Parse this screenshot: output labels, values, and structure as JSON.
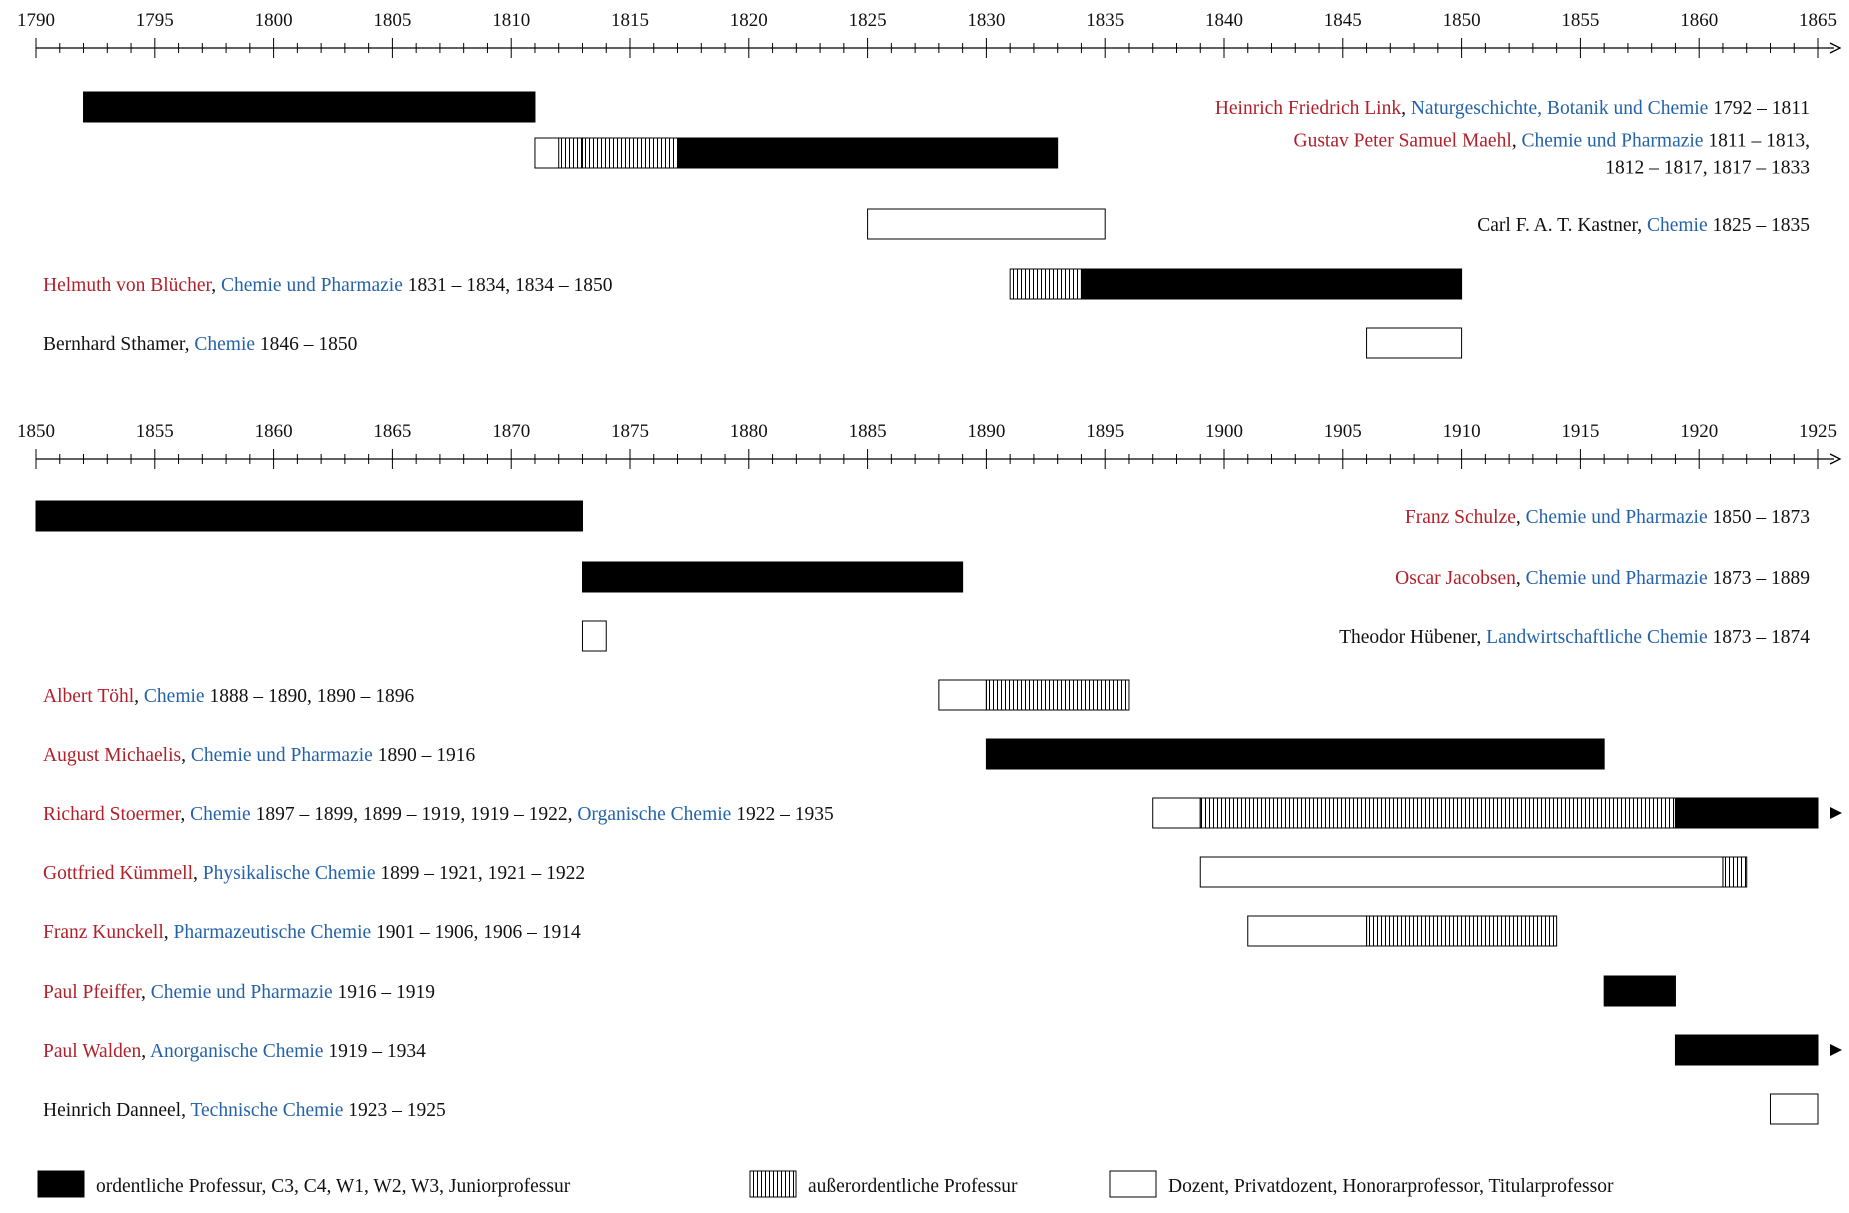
{
  "chart_data": [
    {
      "type": "timeline",
      "xlim": [
        1790,
        1865
      ],
      "ticks": [
        1790,
        1795,
        1800,
        1805,
        1810,
        1815,
        1820,
        1825,
        1830,
        1835,
        1840,
        1845,
        1850,
        1855,
        1860,
        1865
      ],
      "rows": [
        {
          "label_side": "right",
          "name": "Heinrich Friedrich Link",
          "name_color": "red",
          "lines": [
            [
              {
                "text": "Heinrich Friedrich Link",
                "color": "red"
              },
              {
                "text": ", ",
                "color": "black"
              },
              {
                "text": "Naturgeschichte, Botanik und Chemie",
                "color": "blue"
              },
              {
                "text": " 1792 – 1811",
                "color": "black"
              }
            ]
          ],
          "segments": [
            {
              "start": 1792,
              "end": 1811,
              "kind": "ordentlich"
            }
          ]
        },
        {
          "label_side": "right",
          "name": "Gustav Peter Samuel Maehl",
          "name_color": "red",
          "lines": [
            [
              {
                "text": "Gustav Peter Samuel Maehl",
                "color": "red"
              },
              {
                "text": ", ",
                "color": "black"
              },
              {
                "text": "Chemie und Pharmazie",
                "color": "blue"
              },
              {
                "text": " 1811 – 1813,",
                "color": "black"
              }
            ],
            [
              {
                "text": "1812 – 1817, 1817 – 1833",
                "color": "black"
              }
            ]
          ],
          "segments": [
            {
              "start": 1811,
              "end": 1813,
              "kind": "dozent"
            },
            {
              "start": 1812,
              "end": 1817,
              "kind": "ausserordentlich"
            },
            {
              "start": 1817,
              "end": 1833,
              "kind": "ordentlich"
            }
          ]
        },
        {
          "label_side": "right",
          "name": "Carl F. A. T. Kastner",
          "name_color": "black",
          "lines": [
            [
              {
                "text": "Carl F. A. T. Kastner",
                "color": "black"
              },
              {
                "text": ", ",
                "color": "black"
              },
              {
                "text": "Chemie",
                "color": "blue"
              },
              {
                "text": " 1825 – 1835",
                "color": "black"
              }
            ]
          ],
          "segments": [
            {
              "start": 1825,
              "end": 1835,
              "kind": "dozent"
            }
          ]
        },
        {
          "label_side": "left",
          "name": "Helmuth von Blücher",
          "name_color": "red",
          "lines": [
            [
              {
                "text": "Helmuth von Blücher",
                "color": "red"
              },
              {
                "text": ", ",
                "color": "black"
              },
              {
                "text": "Chemie und Pharmazie",
                "color": "blue"
              },
              {
                "text": " 1831 – 1834, 1834 – 1850",
                "color": "black"
              }
            ]
          ],
          "segments": [
            {
              "start": 1831,
              "end": 1834,
              "kind": "ausserordentlich"
            },
            {
              "start": 1834,
              "end": 1850,
              "kind": "ordentlich"
            }
          ]
        },
        {
          "label_side": "left",
          "name": "Bernhard Sthamer",
          "name_color": "black",
          "lines": [
            [
              {
                "text": "Bernhard Sthamer",
                "color": "black"
              },
              {
                "text": ", ",
                "color": "black"
              },
              {
                "text": "Chemie",
                "color": "blue"
              },
              {
                "text": " 1846 – 1850",
                "color": "black"
              }
            ]
          ],
          "segments": [
            {
              "start": 1846,
              "end": 1850,
              "kind": "dozent"
            }
          ]
        }
      ]
    },
    {
      "type": "timeline",
      "xlim": [
        1850,
        1925
      ],
      "ticks": [
        1850,
        1855,
        1860,
        1865,
        1870,
        1875,
        1880,
        1885,
        1890,
        1895,
        1900,
        1905,
        1910,
        1915,
        1920,
        1925
      ],
      "rows": [
        {
          "label_side": "right",
          "name": "Franz Schulze",
          "name_color": "red",
          "lines": [
            [
              {
                "text": "Franz Schulze",
                "color": "red"
              },
              {
                "text": ", ",
                "color": "black"
              },
              {
                "text": "Chemie und Pharmazie",
                "color": "blue"
              },
              {
                "text": " 1850 – 1873",
                "color": "black"
              }
            ]
          ],
          "segments": [
            {
              "start": 1850,
              "end": 1873,
              "kind": "ordentlich"
            }
          ]
        },
        {
          "label_side": "right",
          "name": "Oscar Jacobsen",
          "name_color": "red",
          "lines": [
            [
              {
                "text": "Oscar Jacobsen",
                "color": "red"
              },
              {
                "text": ", ",
                "color": "black"
              },
              {
                "text": "Chemie und Pharmazie",
                "color": "blue"
              },
              {
                "text": " 1873 – 1889",
                "color": "black"
              }
            ]
          ],
          "segments": [
            {
              "start": 1873,
              "end": 1889,
              "kind": "ordentlich"
            }
          ]
        },
        {
          "label_side": "right",
          "name": "Theodor Hübener",
          "name_color": "black",
          "lines": [
            [
              {
                "text": "Theodor Hübener",
                "color": "black"
              },
              {
                "text": ", ",
                "color": "black"
              },
              {
                "text": "Landwirtschaftliche Chemie",
                "color": "blue"
              },
              {
                "text": " 1873 – 1874",
                "color": "black"
              }
            ]
          ],
          "segments": [
            {
              "start": 1873,
              "end": 1874,
              "kind": "dozent"
            }
          ]
        },
        {
          "label_side": "left",
          "name": "Albert Töhl",
          "name_color": "red",
          "lines": [
            [
              {
                "text": "Albert Töhl",
                "color": "red"
              },
              {
                "text": ", ",
                "color": "black"
              },
              {
                "text": "Chemie",
                "color": "blue"
              },
              {
                "text": " 1888 – 1890, 1890 – 1896",
                "color": "black"
              }
            ]
          ],
          "segments": [
            {
              "start": 1888,
              "end": 1890,
              "kind": "dozent"
            },
            {
              "start": 1890,
              "end": 1896,
              "kind": "ausserordentlich"
            }
          ]
        },
        {
          "label_side": "left",
          "name": "August Michaelis",
          "name_color": "red",
          "lines": [
            [
              {
                "text": "August Michaelis",
                "color": "red"
              },
              {
                "text": ", ",
                "color": "black"
              },
              {
                "text": "Chemie und Pharmazie",
                "color": "blue"
              },
              {
                "text": " 1890 – 1916",
                "color": "black"
              }
            ]
          ],
          "segments": [
            {
              "start": 1890,
              "end": 1916,
              "kind": "ordentlich"
            }
          ]
        },
        {
          "label_side": "left",
          "name": "Richard Stoermer",
          "name_color": "red",
          "continues": true,
          "lines": [
            [
              {
                "text": "Richard Stoermer",
                "color": "red"
              },
              {
                "text": ", ",
                "color": "black"
              },
              {
                "text": "Chemie",
                "color": "blue"
              },
              {
                "text": " 1897 – 1899, 1899 – 1919, 1919 – 1922, ",
                "color": "black"
              },
              {
                "text": "Organische Chemie",
                "color": "blue"
              },
              {
                "text": " 1922 – 1935",
                "color": "black"
              }
            ]
          ],
          "segments": [
            {
              "start": 1897,
              "end": 1899,
              "kind": "dozent"
            },
            {
              "start": 1899,
              "end": 1919,
              "kind": "ausserordentlich"
            },
            {
              "start": 1919,
              "end": 1922,
              "kind": "ordentlich"
            },
            {
              "start": 1922,
              "end": 1935,
              "kind": "ordentlich"
            }
          ]
        },
        {
          "label_side": "left",
          "name": "Gottfried Kümmell",
          "name_color": "red",
          "lines": [
            [
              {
                "text": "Gottfried Kümmell",
                "color": "red"
              },
              {
                "text": ", ",
                "color": "black"
              },
              {
                "text": "Physikalische Chemie",
                "color": "blue"
              },
              {
                "text": " 1899 – 1921, 1921 – 1922",
                "color": "black"
              }
            ]
          ],
          "segments": [
            {
              "start": 1899,
              "end": 1921,
              "kind": "dozent"
            },
            {
              "start": 1921,
              "end": 1922,
              "kind": "ausserordentlich"
            }
          ]
        },
        {
          "label_side": "left",
          "name": "Franz Kunckell",
          "name_color": "red",
          "lines": [
            [
              {
                "text": "Franz Kunckell",
                "color": "red"
              },
              {
                "text": ", ",
                "color": "black"
              },
              {
                "text": "Pharmazeutische Chemie",
                "color": "blue"
              },
              {
                "text": " 1901 – 1906, 1906 – 1914",
                "color": "black"
              }
            ]
          ],
          "segments": [
            {
              "start": 1901,
              "end": 1906,
              "kind": "dozent"
            },
            {
              "start": 1906,
              "end": 1914,
              "kind": "ausserordentlich"
            }
          ]
        },
        {
          "label_side": "left",
          "name": "Paul Pfeiffer",
          "name_color": "red",
          "lines": [
            [
              {
                "text": "Paul Pfeiffer",
                "color": "red"
              },
              {
                "text": ", ",
                "color": "black"
              },
              {
                "text": "Chemie und Pharmazie",
                "color": "blue"
              },
              {
                "text": " 1916 – 1919",
                "color": "black"
              }
            ]
          ],
          "segments": [
            {
              "start": 1916,
              "end": 1919,
              "kind": "ordentlich"
            }
          ]
        },
        {
          "label_side": "left",
          "name": "Paul Walden",
          "name_color": "red",
          "continues": true,
          "lines": [
            [
              {
                "text": "Paul Walden",
                "color": "red"
              },
              {
                "text": ", ",
                "color": "black"
              },
              {
                "text": "Anorganische Chemie",
                "color": "blue"
              },
              {
                "text": " 1919 – 1934",
                "color": "black"
              }
            ]
          ],
          "segments": [
            {
              "start": 1919,
              "end": 1934,
              "kind": "ordentlich"
            }
          ]
        },
        {
          "label_side": "left",
          "name": "Heinrich Danneel",
          "name_color": "black",
          "lines": [
            [
              {
                "text": "Heinrich Danneel",
                "color": "black"
              },
              {
                "text": ", ",
                "color": "black"
              },
              {
                "text": "Technische Chemie",
                "color": "blue"
              },
              {
                "text": " 1923 – 1925",
                "color": "black"
              }
            ]
          ],
          "segments": [
            {
              "start": 1923,
              "end": 1925,
              "kind": "dozent"
            }
          ]
        }
      ]
    }
  ],
  "legend": [
    {
      "kind": "ordentlich",
      "label": "ordentliche Professur, C3, C4, W1, W2, W3, Juniorprofessur"
    },
    {
      "kind": "ausserordentlich",
      "label": "außerordentliche Professur"
    },
    {
      "kind": "dozent",
      "label": "Dozent, Privatdozent, Honorarprofessor, Titularprofessor"
    }
  ],
  "colors": {
    "name_red": "#b0202a",
    "subject_blue": "#2462a8",
    "text_black": "#111111",
    "bar_fill": "#000000"
  }
}
